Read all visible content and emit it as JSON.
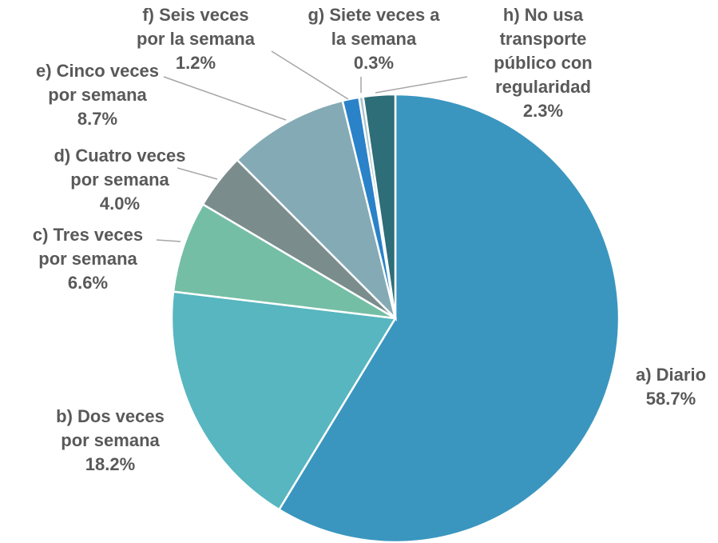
{
  "chart_data": {
    "type": "pie",
    "categories": [
      [
        "a) Diario"
      ],
      [
        "b) Dos veces",
        "por semana"
      ],
      [
        "c) Tres veces",
        "por semana"
      ],
      [
        "d) Cuatro veces",
        "por semana"
      ],
      [
        "e) Cinco veces",
        "por semana"
      ],
      [
        "f) Seis veces",
        "por la semana"
      ],
      [
        "g) Siete veces a",
        "la semana"
      ],
      [
        "h) No usa",
        "transporte",
        "público con",
        "regularidad"
      ]
    ],
    "values": [
      58.7,
      18.2,
      6.6,
      4.0,
      8.7,
      1.2,
      0.3,
      2.3
    ],
    "value_labels": [
      "58.7%",
      "18.2%",
      "6.6%",
      "4.0%",
      "8.7%",
      "1.2%",
      "0.3%",
      "2.3%"
    ],
    "colors": [
      "#3a96bf",
      "#57b6bf",
      "#75bea6",
      "#7a8c8c",
      "#84aab5",
      "#2a82c9",
      "#a9c4cc",
      "#2d6e78"
    ]
  }
}
